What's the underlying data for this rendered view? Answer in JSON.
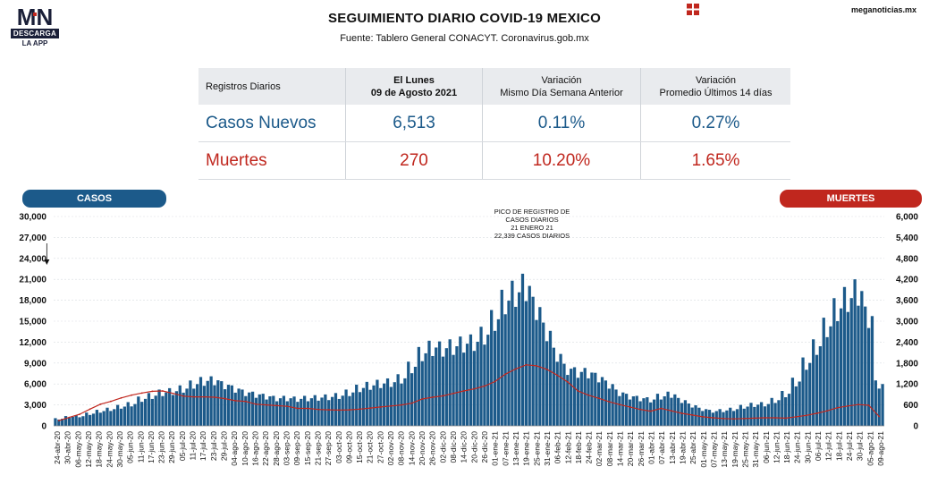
{
  "logo": {
    "mark": "MN",
    "line1": "DESCARGA",
    "line2": "LA APP"
  },
  "header": {
    "title": "SEGUIMIENTO DIARIO COVID-19 MEXICO",
    "subtitle": "Fuente: Tablero General CONACYT. Coronavirus.gob.mx",
    "site": "meganoticias.mx"
  },
  "stats_table": {
    "col0_header": "Registros Diarios",
    "col1_header_line1": "El Lunes",
    "col1_header_line2": "09 de Agosto 2021",
    "col2_header_line1": "Variación",
    "col2_header_line2": "Mismo Día Semana Anterior",
    "col3_header_line1": "Variación",
    "col3_header_line2": "Promedio Últimos 14 días",
    "rows": [
      {
        "label": "Casos Nuevos",
        "value": "6,513",
        "var_week": "0.11%",
        "var_14d": "0.27%"
      },
      {
        "label": "Muertes",
        "value": "270",
        "var_week": "10.20%",
        "var_14d": "1.65%"
      }
    ]
  },
  "colors": {
    "casos": "#1c5a8a",
    "muertes": "#c0271e",
    "header_bg": "#e9ebee"
  },
  "chart_data": {
    "type": "bar",
    "left_tab": "CASOS",
    "right_tab": "MUERTES",
    "annotation": [
      "PICO DE REGISTRO DE",
      "CASOS DIARIOS",
      "21 ENERO 21",
      "22,339 CASOS DIARIOS"
    ],
    "annotation_date": "21-ene-21",
    "annotation_value": 22339,
    "ylim_left": [
      0,
      30000
    ],
    "ylim_right": [
      0,
      6000
    ],
    "yticks_left": [
      "30,000",
      "27,000",
      "24,000",
      "21,000",
      "18,000",
      "15,000",
      "12,000",
      "9,000",
      "6,000",
      "3,000",
      "0"
    ],
    "yticks_right": [
      "6,000",
      "5,400",
      "4,800",
      "4,200",
      "3,600",
      "3,000",
      "2,400",
      "1,800",
      "1,200",
      "600",
      "0"
    ],
    "xticks": [
      "24-abr-20",
      "30-abr-20",
      "06-may-20",
      "12-may-20",
      "18-may-20",
      "24-may-20",
      "30-may-20",
      "05-jun-20",
      "11-jun-20",
      "17-jun-20",
      "23-jun-20",
      "29-jun-20",
      "05-jul-20",
      "11-jul-20",
      "17-jul-20",
      "23-jul-20",
      "29-jul-20",
      "04-ago-20",
      "10-ago-20",
      "16-ago-20",
      "22-ago-20",
      "28-ago-20",
      "03-sep-20",
      "09-sep-20",
      "15-sep-20",
      "21-sep-20",
      "27-sep-20",
      "03-oct-20",
      "09-oct-20",
      "15-oct-20",
      "21-oct-20",
      "27-oct-20",
      "02-nov-20",
      "08-nov-20",
      "14-nov-20",
      "20-nov-20",
      "26-nov-20",
      "02-dic-20",
      "08-dic-20",
      "14-dic-20",
      "20-dic-20",
      "26-dic-20",
      "01-ene-21",
      "07-ene-21",
      "13-ene-21",
      "19-ene-21",
      "25-ene-21",
      "31-ene-21",
      "06-feb-21",
      "12-feb-21",
      "18-feb-21",
      "24-feb-21",
      "02-mar-21",
      "08-mar-21",
      "14-mar-21",
      "20-mar-21",
      "26-mar-21",
      "01-abr-21",
      "07-abr-21",
      "13-abr-21",
      "19-abr-21",
      "25-abr-21",
      "01-may-21",
      "07-may-21",
      "13-may-21",
      "19-may-21",
      "25-may-21",
      "31-may-21",
      "06-jun-21",
      "12-jun-21",
      "18-jun-21",
      "24-jun-21",
      "30-jun-21",
      "06-jul-21",
      "12-jul-21",
      "18-jul-21",
      "24-jul-21",
      "30-jul-21",
      "05-ago-21",
      "09-ago-21"
    ],
    "series": [
      {
        "name": "CASOS",
        "axis": "left",
        "kind": "bar",
        "values": [
          1100,
          1400,
          1500,
          1900,
          2300,
          2600,
          3000,
          3400,
          4200,
          4700,
          5200,
          5400,
          5800,
          6500,
          7000,
          7100,
          6400,
          5800,
          5200,
          4900,
          4600,
          4300,
          4300,
          4200,
          4300,
          4400,
          4500,
          4700,
          5200,
          5900,
          6300,
          6600,
          6800,
          7400,
          9200,
          11300,
          12200,
          12100,
          12400,
          12800,
          13100,
          14200,
          16600,
          19500,
          20800,
          21800,
          18500,
          14800,
          11200,
          8900,
          8400,
          8300,
          7600,
          6500,
          5200,
          4600,
          4300,
          4100,
          4600,
          4900,
          4000,
          3200,
          2600,
          2300,
          2400,
          2600,
          3000,
          3300,
          3400,
          4000,
          5000,
          6900,
          9800,
          12400,
          15500,
          18300,
          19900,
          21000,
          17100,
          6513
        ]
      },
      {
        "name": "MUERTES",
        "axis": "right",
        "kind": "line",
        "values": [
          150,
          240,
          330,
          480,
          620,
          700,
          800,
          880,
          940,
          990,
          1000,
          930,
          850,
          830,
          830,
          820,
          780,
          720,
          700,
          620,
          600,
          580,
          560,
          500,
          500,
          470,
          460,
          450,
          460,
          480,
          510,
          540,
          570,
          600,
          650,
          770,
          820,
          860,
          930,
          1000,
          1060,
          1140,
          1270,
          1480,
          1630,
          1750,
          1720,
          1620,
          1450,
          1260,
          1000,
          880,
          790,
          690,
          610,
          540,
          470,
          420,
          500,
          430,
          360,
          310,
          260,
          230,
          210,
          200,
          210,
          220,
          230,
          230,
          220,
          260,
          300,
          360,
          430,
          520,
          570,
          610,
          590,
          270
        ]
      }
    ]
  }
}
